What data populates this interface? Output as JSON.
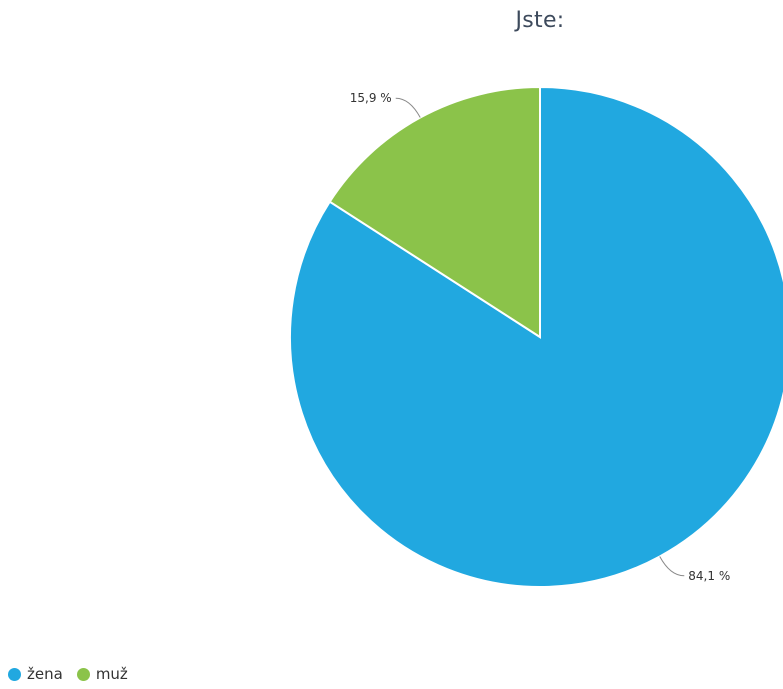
{
  "chart_data": {
    "type": "pie",
    "title": "Jste:",
    "slices": [
      {
        "name": "žena",
        "value": 84.1,
        "label": "84,1 %",
        "color": "#21a8e0"
      },
      {
        "name": "muž",
        "value": 15.9,
        "label": "15,9 %",
        "color": "#8bc34a"
      }
    ],
    "start_angle_deg": 0,
    "direction": "clockwise",
    "legend_position": "bottom-left"
  }
}
